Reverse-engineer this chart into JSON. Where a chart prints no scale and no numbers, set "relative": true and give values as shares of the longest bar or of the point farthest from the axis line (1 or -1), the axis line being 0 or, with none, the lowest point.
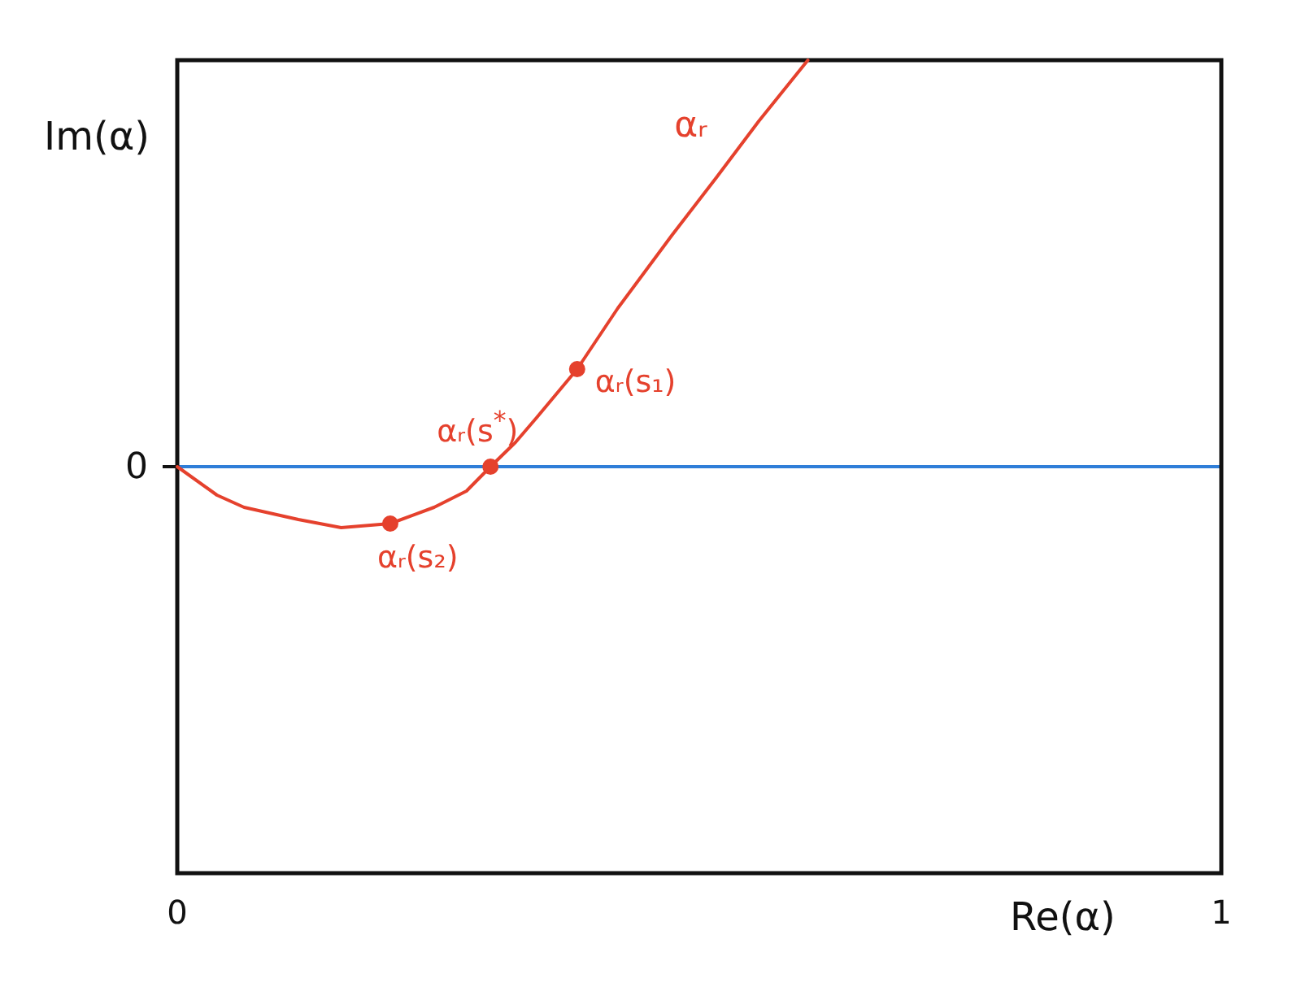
{
  "chart_data": {
    "type": "line",
    "relative": true,
    "xlabel": "Re(α)",
    "ylabel": "Im(α)",
    "xlim": [
      0,
      1
    ],
    "xticks": [
      0,
      1
    ],
    "series": [
      {
        "name": "αᵣ",
        "color": "#e5412d",
        "x": [
          0,
          0.038,
          0.064,
          0.116,
          0.157,
          0.204,
          0.246,
          0.277,
          0.3,
          0.324,
          0.344,
          0.383,
          0.422,
          0.474,
          0.516,
          0.557,
          0.604
        ],
        "values": [
          0,
          -0.07,
          -0.1,
          -0.13,
          -0.15,
          -0.14,
          -0.1,
          -0.06,
          0,
          0.06,
          0.12,
          0.24,
          0.39,
          0.57,
          0.71,
          0.85,
          1
        ]
      },
      {
        "type": "scatter",
        "marker": "circle",
        "color": "#e5412d",
        "x": [
          0.204,
          0.3,
          0.383
        ],
        "values": [
          -0.14,
          0,
          0.24
        ]
      }
    ],
    "ref_lines": [
      {
        "axis": "y",
        "value": 0,
        "label": "0",
        "color": "#2f7ed8"
      }
    ],
    "annotations": [
      {
        "text": "αᵣ(s₁)",
        "x": 0.383,
        "y": 0.24
      },
      {
        "text": "αᵣ(s$^{*}$)",
        "x": 0.3,
        "y": 0
      },
      {
        "text": "αᵣ(s₂)",
        "x": 0.204,
        "y": -0.14
      }
    ]
  }
}
